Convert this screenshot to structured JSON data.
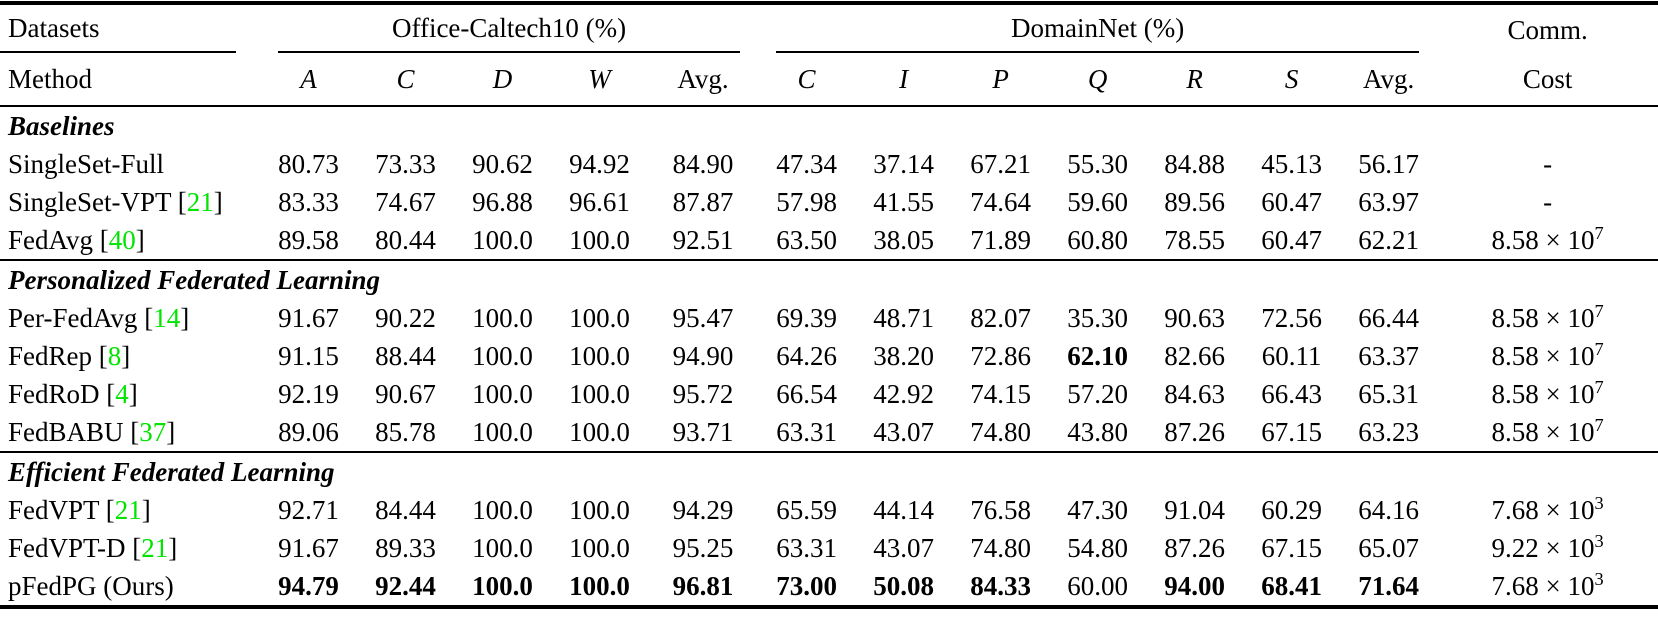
{
  "header": {
    "datasets_label": "Datasets",
    "method_label": "Method",
    "group1": {
      "label": "Office-Caltech10 (%)",
      "columns": [
        "A",
        "C",
        "D",
        "W",
        "Avg."
      ]
    },
    "group2": {
      "label": "DomainNet (%)",
      "columns": [
        "C",
        "I",
        "P",
        "Q",
        "R",
        "S",
        "Avg."
      ]
    },
    "comm_label": "Comm.",
    "cost_label": "Cost"
  },
  "colors": {
    "text": "#000000",
    "citation_green": "#00E400"
  },
  "sections": [
    {
      "title": "Baselines",
      "rows": [
        {
          "method": "SingleSet-Full",
          "cite": null,
          "values": [
            "80.73",
            "73.33",
            "90.62",
            "94.92",
            "84.90",
            "47.34",
            "37.14",
            "67.21",
            "55.30",
            "84.88",
            "45.13",
            "56.17"
          ],
          "bold": [],
          "cost": {
            "text": "-",
            "exp": null
          }
        },
        {
          "method": "SingleSet-VPT",
          "cite": "21",
          "values": [
            "83.33",
            "74.67",
            "96.88",
            "96.61",
            "87.87",
            "57.98",
            "41.55",
            "74.64",
            "59.60",
            "89.56",
            "60.47",
            "63.97"
          ],
          "bold": [],
          "cost": {
            "text": "-",
            "exp": null
          }
        },
        {
          "method": "FedAvg",
          "cite": "40",
          "values": [
            "89.58",
            "80.44",
            "100.0",
            "100.0",
            "92.51",
            "63.50",
            "38.05",
            "71.89",
            "60.80",
            "78.55",
            "60.47",
            "62.21"
          ],
          "bold": [],
          "cost": {
            "text": "8.58 × 10",
            "exp": "7"
          }
        }
      ]
    },
    {
      "title": "Personalized Federated Learning",
      "rows": [
        {
          "method": "Per-FedAvg",
          "cite": "14",
          "values": [
            "91.67",
            "90.22",
            "100.0",
            "100.0",
            "95.47",
            "69.39",
            "48.71",
            "82.07",
            "35.30",
            "90.63",
            "72.56",
            "66.44"
          ],
          "bold": [],
          "cost": {
            "text": "8.58 × 10",
            "exp": "7"
          }
        },
        {
          "method": "FedRep",
          "cite": "8",
          "values": [
            "91.15",
            "88.44",
            "100.0",
            "100.0",
            "94.90",
            "64.26",
            "38.20",
            "72.86",
            "62.10",
            "82.66",
            "60.11",
            "63.37"
          ],
          "bold": [
            8
          ],
          "cost": {
            "text": "8.58 × 10",
            "exp": "7"
          }
        },
        {
          "method": "FedRoD",
          "cite": "4",
          "values": [
            "92.19",
            "90.67",
            "100.0",
            "100.0",
            "95.72",
            "66.54",
            "42.92",
            "74.15",
            "57.20",
            "84.63",
            "66.43",
            "65.31"
          ],
          "bold": [],
          "cost": {
            "text": "8.58 × 10",
            "exp": "7"
          }
        },
        {
          "method": "FedBABU",
          "cite": "37",
          "values": [
            "89.06",
            "85.78",
            "100.0",
            "100.0",
            "93.71",
            "63.31",
            "43.07",
            "74.80",
            "43.80",
            "87.26",
            "67.15",
            "63.23"
          ],
          "bold": [],
          "cost": {
            "text": "8.58 × 10",
            "exp": "7"
          }
        }
      ]
    },
    {
      "title": "Efficient Federated Learning",
      "rows": [
        {
          "method": "FedVPT",
          "cite": "21",
          "values": [
            "92.71",
            "84.44",
            "100.0",
            "100.0",
            "94.29",
            "65.59",
            "44.14",
            "76.58",
            "47.30",
            "91.04",
            "60.29",
            "64.16"
          ],
          "bold": [],
          "cost": {
            "text": "7.68 × 10",
            "exp": "3"
          }
        },
        {
          "method": "FedVPT-D",
          "cite": "21",
          "values": [
            "91.67",
            "89.33",
            "100.0",
            "100.0",
            "95.25",
            "63.31",
            "43.07",
            "74.80",
            "54.80",
            "87.26",
            "67.15",
            "65.07"
          ],
          "bold": [],
          "cost": {
            "text": "9.22 × 10",
            "exp": "3"
          }
        },
        {
          "method": "pFedPG (Ours)",
          "cite": null,
          "values": [
            "94.79",
            "92.44",
            "100.0",
            "100.0",
            "96.81",
            "73.00",
            "50.08",
            "84.33",
            "60.00",
            "94.00",
            "68.41",
            "71.64"
          ],
          "bold": [
            0,
            1,
            2,
            3,
            4,
            5,
            6,
            7,
            9,
            10,
            11
          ],
          "cost": {
            "text": "7.68 × 10",
            "exp": "3"
          }
        }
      ]
    }
  ]
}
